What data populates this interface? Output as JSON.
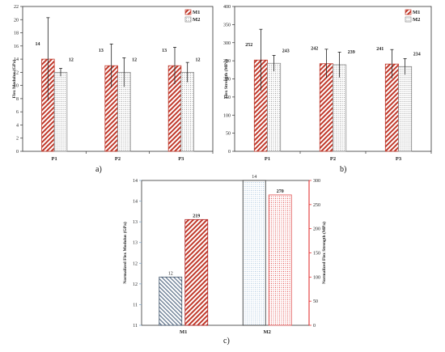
{
  "chart_data": [
    {
      "type": "bar",
      "panel_label": "a)",
      "categories": [
        "P1",
        "P2",
        "P3"
      ],
      "series": [
        {
          "name": "M1",
          "values": [
            14,
            13,
            13
          ],
          "error": [
            6.3,
            3.3,
            2.8
          ],
          "labels": [
            "14",
            "13",
            "13"
          ],
          "color": "#c0392b"
        },
        {
          "name": "M2",
          "values": [
            12,
            12,
            12
          ],
          "error": [
            0.6,
            2.2,
            1.5
          ],
          "labels": [
            "12",
            "12",
            "12"
          ],
          "color": "#9a9a9a"
        }
      ],
      "ylabel": "Flex Modulus (GPa)",
      "ylim": [
        0,
        22
      ],
      "yticks": [
        "0",
        "2",
        "4",
        "6",
        "8",
        "10",
        "12",
        "14",
        "16",
        "18",
        "20",
        "22"
      ],
      "legend": "top-right",
      "grid": false
    },
    {
      "type": "bar",
      "panel_label": "b)",
      "categories": [
        "P1",
        "P2",
        "P3"
      ],
      "series": [
        {
          "name": "M1",
          "values": [
            252,
            242,
            241
          ],
          "error": [
            85,
            40,
            40
          ],
          "labels": [
            "252",
            "242",
            "241"
          ],
          "color": "#c0392b"
        },
        {
          "name": "M2",
          "values": [
            243,
            239,
            234
          ],
          "error": [
            22,
            35,
            22
          ],
          "labels": [
            "243",
            "239",
            "234"
          ],
          "color": "#9a9a9a"
        }
      ],
      "ylabel": "Flex Strength (MPa)",
      "ylim": [
        0,
        400
      ],
      "yticks": [
        "0",
        "50",
        "100",
        "150",
        "200",
        "250",
        "300",
        "350",
        "400"
      ],
      "legend": "top-right",
      "grid": false
    },
    {
      "type": "bar",
      "panel_label": "c)",
      "categories": [
        "M1",
        "M2"
      ],
      "series": [
        {
          "name": "Normalized Flex Modulus (GPa)",
          "axis": "left",
          "values": [
            12,
            14
          ],
          "labels": [
            "12",
            "14"
          ],
          "color": "#7fa7c9"
        },
        {
          "name": "Normalized Flex Strength (MPa)",
          "axis": "right",
          "values": [
            219,
            270
          ],
          "labels": [
            "219",
            "270"
          ],
          "color": "#e02020"
        }
      ],
      "ylabel": "Normalized Flex Modulus (GPa)",
      "y2label": "Normalized Flex Strength (MPa)",
      "ylim": [
        11,
        14
      ],
      "y2lim": [
        0,
        300
      ],
      "yticks": [
        "11",
        "11",
        "12",
        "12",
        "13",
        "13",
        "14",
        "14"
      ],
      "y2ticks": [
        "0",
        "50",
        "100",
        "150",
        "200",
        "250",
        "300"
      ],
      "grid": false
    }
  ]
}
